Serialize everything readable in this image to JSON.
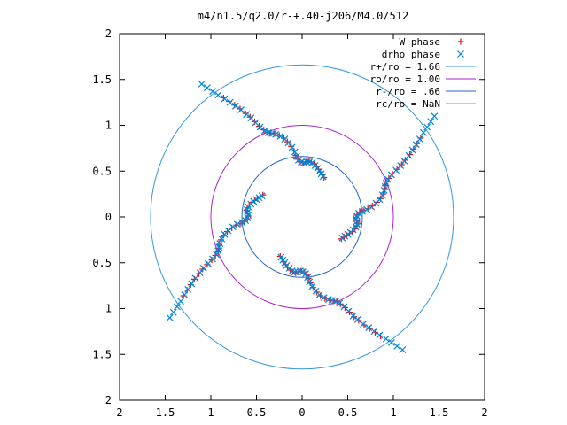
{
  "chart_data": {
    "type": "scatter",
    "title": "m4/n1.5/q2.0/r-+.40-j206/M4.0/512",
    "xlabel": "",
    "ylabel": "",
    "xlim": [
      -2,
      2
    ],
    "ylim": [
      -2,
      2
    ],
    "xticks": [
      -2,
      -1.5,
      -1,
      -0.5,
      0,
      0.5,
      1,
      1.5,
      2
    ],
    "yticks": [
      -2,
      -1.5,
      -1,
      -0.5,
      0,
      0.5,
      1,
      1.5,
      2
    ],
    "xtick_labels": [
      "2",
      "1.5",
      "1",
      "0.5",
      "0",
      "0.5",
      "1",
      "1.5",
      "2"
    ],
    "ytick_labels": [
      "2",
      "1.5",
      "1",
      "0.5",
      "0",
      "0.5",
      "1",
      "1.5",
      "2"
    ],
    "grid": false,
    "legend_position": "top-right",
    "arm_rotations_deg": [
      0,
      90,
      180,
      270
    ],
    "series": [
      {
        "name": "W phase",
        "marker": "plus",
        "color": "#ff0000",
        "arm_points": [
          [
            0.24,
            0.43
          ],
          [
            0.22,
            0.46
          ],
          [
            0.2,
            0.49
          ],
          [
            0.18,
            0.52
          ],
          [
            0.16,
            0.55
          ],
          [
            0.13,
            0.58
          ],
          [
            0.1,
            0.6
          ],
          [
            0.07,
            0.61
          ],
          [
            0.04,
            0.6
          ],
          [
            0.01,
            0.59
          ],
          [
            -0.02,
            0.6
          ],
          [
            -0.05,
            0.63
          ],
          [
            -0.07,
            0.67
          ],
          [
            -0.09,
            0.72
          ],
          [
            -0.12,
            0.77
          ],
          [
            -0.16,
            0.82
          ],
          [
            -0.2,
            0.86
          ],
          [
            -0.25,
            0.89
          ],
          [
            -0.3,
            0.91
          ],
          [
            -0.34,
            0.91
          ],
          [
            -0.38,
            0.92
          ],
          [
            -0.42,
            0.95
          ],
          [
            -0.47,
            0.99
          ],
          [
            -0.52,
            1.04
          ],
          [
            -0.57,
            1.09
          ],
          [
            -0.62,
            1.13
          ],
          [
            -0.68,
            1.18
          ],
          [
            -0.74,
            1.22
          ],
          [
            -0.8,
            1.26
          ],
          [
            -0.86,
            1.3
          ]
        ]
      },
      {
        "name": "drho phase",
        "marker": "cross",
        "color": "#0088dd",
        "arm_points": [
          [
            0.23,
            0.44
          ],
          [
            0.21,
            0.47
          ],
          [
            0.19,
            0.5
          ],
          [
            0.17,
            0.53
          ],
          [
            0.14,
            0.56
          ],
          [
            0.11,
            0.59
          ],
          [
            0.08,
            0.6
          ],
          [
            0.05,
            0.6
          ],
          [
            0.02,
            0.59
          ],
          [
            -0.01,
            0.6
          ],
          [
            -0.04,
            0.62
          ],
          [
            -0.06,
            0.66
          ],
          [
            -0.08,
            0.71
          ],
          [
            -0.11,
            0.76
          ],
          [
            -0.15,
            0.81
          ],
          [
            -0.19,
            0.85
          ],
          [
            -0.24,
            0.88
          ],
          [
            -0.29,
            0.9
          ],
          [
            -0.33,
            0.91
          ],
          [
            -0.37,
            0.92
          ],
          [
            -0.41,
            0.94
          ],
          [
            -0.46,
            0.98
          ],
          [
            -0.51,
            1.03
          ],
          [
            -0.56,
            1.08
          ],
          [
            -0.61,
            1.12
          ],
          [
            -0.67,
            1.17
          ],
          [
            -0.73,
            1.21
          ],
          [
            -0.79,
            1.25
          ],
          [
            -0.85,
            1.29
          ],
          [
            -0.92,
            1.33
          ],
          [
            -0.98,
            1.37
          ],
          [
            -1.04,
            1.41
          ],
          [
            -1.1,
            1.45
          ]
        ]
      }
    ],
    "circles": [
      {
        "name": "r+/ro = 1.66",
        "r": 1.66,
        "color": "#3399dd"
      },
      {
        "name": "ro/ro = 1.00",
        "r": 1.0,
        "color": "#aa22cc"
      },
      {
        "name": "r-/ro = .66",
        "r": 0.66,
        "color": "#2266cc"
      },
      {
        "name": "rc/ro = NaN",
        "r": null,
        "color": "#33bbcc"
      }
    ]
  }
}
